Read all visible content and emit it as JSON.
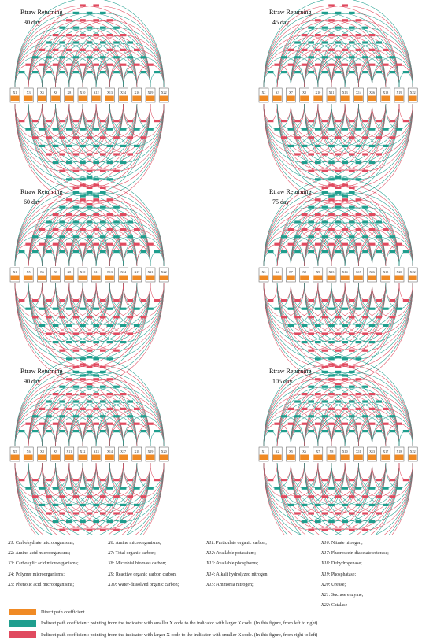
{
  "colors": {
    "direct": "#f08a24",
    "indirect_forward": "#1f9e8e",
    "indirect_backward": "#e04a5f",
    "node_border": "#555555"
  },
  "panels": [
    {
      "title": "Rtraw Returning",
      "day": "30 day",
      "nodes": [
        "X1",
        "X3",
        "X5",
        "X6",
        "X8",
        "X10",
        "X12",
        "X13",
        "X14",
        "X16",
        "X19",
        "X22"
      ]
    },
    {
      "title": "Rtraw Returning",
      "day": "45 day",
      "nodes": [
        "X2",
        "X3",
        "X7",
        "X8",
        "X10",
        "X11",
        "X13",
        "X14",
        "X16",
        "X18",
        "X19",
        "X22"
      ]
    },
    {
      "title": "Rtraw Returning",
      "day": "60 day",
      "nodes": [
        "X1",
        "X5",
        "X6",
        "X7",
        "X8",
        "X10",
        "X11",
        "X13",
        "X14",
        "X17",
        "X21",
        "X22"
      ]
    },
    {
      "title": "Rtraw Returning",
      "day": "75 day",
      "nodes": [
        "X3",
        "X4",
        "X7",
        "X8",
        "X9",
        "X13",
        "X14",
        "X15",
        "X16",
        "X18",
        "X20",
        "X22"
      ]
    },
    {
      "title": "Rtraw Returning",
      "day": "90 day",
      "nodes": [
        "X5",
        "X6",
        "X8",
        "X9",
        "X11",
        "X12",
        "X13",
        "X14",
        "X17",
        "X18",
        "X19",
        "X20"
      ]
    },
    {
      "title": "Rtraw Returning",
      "day": "105 day",
      "nodes": [
        "X1",
        "X2",
        "X5",
        "X6",
        "X7",
        "X8",
        "X10",
        "X11",
        "X13",
        "X17",
        "X18",
        "X22"
      ]
    }
  ],
  "legend": {
    "columns": [
      [
        {
          "code": "X1",
          "text": ": Carbohydrate microorganisms;"
        },
        {
          "code": "X2",
          "text": ": Amino acid microorganisms;"
        },
        {
          "code": "X3",
          "text": ": Carboxylic acid microorganisms;"
        },
        {
          "code": "X4",
          "text": ": Polymer microorganisms;"
        },
        {
          "code": "X5",
          "text": ": Phenolic acid microorganisms;"
        }
      ],
      [
        {
          "code": "X6",
          "text": ": Amine microorganisms;"
        },
        {
          "code": "X7",
          "text": ": Total organic carbon;"
        },
        {
          "code": "X8",
          "text": ": Microbial biomass carbon;"
        },
        {
          "code": "X9",
          "text": ": Reactive organic carbon carbon;"
        },
        {
          "code": "X10",
          "text": ": Water-dissolved organic carbon;"
        }
      ],
      [
        {
          "code": "X11",
          "text": ": Particulate organic carbon;"
        },
        {
          "code": "X12",
          "text": ": Available potassium;"
        },
        {
          "code": "X13",
          "text": ": Available phosphorus;"
        },
        {
          "code": "X14",
          "text": ": Alkali hydrolyzed nitrogen;"
        },
        {
          "code": "X15",
          "text": ": Ammonia nitrogen;"
        }
      ],
      [
        {
          "code": "X16",
          "text": ": Nitrate nitrogen;"
        },
        {
          "code": "X17",
          "text": ": Fluorescein diacetate esterase;"
        },
        {
          "code": "X18",
          "text": ": Dehydrogenase;"
        },
        {
          "code": "X19",
          "text": ": Phosphatase;"
        },
        {
          "code": "X20",
          "text": ": Urease;"
        },
        {
          "code": "X21",
          "text": ": Sucrase enzyme;"
        },
        {
          "code": "X22",
          "text": ": Catalase"
        }
      ]
    ],
    "keys": [
      {
        "text": "Direct path coefficient"
      },
      {
        "text": "Indirect path coefficient: pointing from the indicator with smaller X code to the indicator with larger X code. (In this figure, from left to right)"
      },
      {
        "text": "Indirect path coefficient: pointing from the indicator with larger X code to the indicator with smaller X code. (In this figure, from right to left)"
      }
    ]
  }
}
